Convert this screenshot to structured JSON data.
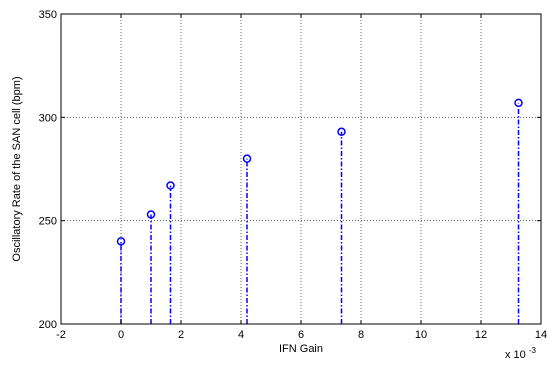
{
  "chart_data": {
    "type": "stem",
    "xlabel": "IFN Gain",
    "ylabel": "Oscillatory Rate of the SAN cell (bpm)",
    "x_multiplier_label": "x 10",
    "x_multiplier_exponent": "-3",
    "xlim": [
      -2,
      14
    ],
    "ylim": [
      200,
      350
    ],
    "xticks": [
      -2,
      0,
      2,
      4,
      6,
      8,
      10,
      12,
      14
    ],
    "yticks": [
      200,
      250,
      300,
      350
    ],
    "grid": true,
    "series": [
      {
        "x": [
          0,
          1.0,
          1.65,
          4.2,
          7.35,
          13.25
        ],
        "y": [
          240,
          253,
          267,
          280,
          293,
          307
        ],
        "color": "#0000ff",
        "line_style": "dash-dot",
        "marker": "circle"
      }
    ]
  }
}
